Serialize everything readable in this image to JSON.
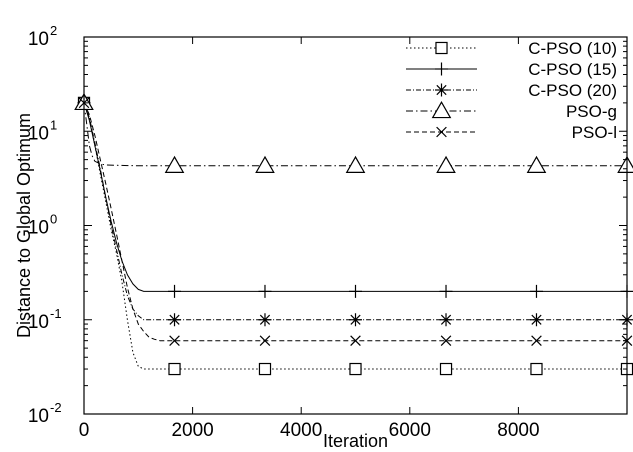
{
  "chart_data": {
    "type": "line",
    "xlabel": "Iteration",
    "ylabel": "Distance to Global Optimum",
    "x_scale": "linear",
    "y_scale": "log",
    "xlim": [
      0,
      10000
    ],
    "ylim": [
      0.01,
      100
    ],
    "x_ticks": [
      0,
      2000,
      4000,
      6000,
      8000
    ],
    "y_ticks": [
      {
        "base": "10",
        "exp": "-2",
        "value": 0.01
      },
      {
        "base": "10",
        "exp": "-1",
        "value": 0.1
      },
      {
        "base": "10",
        "exp": "0",
        "value": 1
      },
      {
        "base": "10",
        "exp": "1",
        "value": 10
      },
      {
        "base": "10",
        "exp": "2",
        "value": 100
      }
    ],
    "grid": false,
    "legend_position": "top-right",
    "marker_x": [
      0,
      1667,
      3333,
      5000,
      6667,
      8333,
      10000
    ],
    "series": [
      {
        "name": "C-PSO (10)",
        "marker": "square",
        "dash": "dotted",
        "final_value": 0.03,
        "x": [
          0,
          100,
          200,
          300,
          400,
          500,
          600,
          700,
          800,
          900,
          1000,
          1100,
          1200,
          1400,
          1600,
          2000,
          3000,
          4000,
          5000,
          6000,
          7000,
          8000,
          9000,
          10000
        ],
        "y": [
          20,
          14,
          7,
          3.5,
          1.8,
          0.9,
          0.5,
          0.25,
          0.1,
          0.045,
          0.032,
          0.03,
          0.03,
          0.03,
          0.03,
          0.03,
          0.03,
          0.03,
          0.03,
          0.03,
          0.03,
          0.03,
          0.03,
          0.03
        ]
      },
      {
        "name": "C-PSO (15)",
        "marker": "plus",
        "dash": "solid",
        "final_value": 0.2,
        "x": [
          0,
          100,
          200,
          300,
          400,
          500,
          600,
          700,
          800,
          900,
          1000,
          1100,
          1200,
          1400,
          1600,
          2000,
          3000,
          4000,
          5000,
          6000,
          7000,
          8000,
          9000,
          10000
        ],
        "y": [
          20,
          13,
          7,
          3.8,
          2.0,
          1.1,
          0.65,
          0.42,
          0.3,
          0.24,
          0.21,
          0.2,
          0.2,
          0.2,
          0.2,
          0.2,
          0.2,
          0.2,
          0.2,
          0.2,
          0.2,
          0.2,
          0.2,
          0.2
        ]
      },
      {
        "name": "C-PSO (20)",
        "marker": "asterisk",
        "dash": "dashed-dotted",
        "final_value": 0.1,
        "x": [
          0,
          100,
          200,
          300,
          400,
          500,
          600,
          700,
          800,
          900,
          1000,
          1100,
          1200,
          1400,
          1600,
          2000,
          3000,
          4000,
          5000,
          6000,
          7000,
          8000,
          9000,
          10000
        ],
        "y": [
          20,
          14,
          7.5,
          4.0,
          2.0,
          1.0,
          0.55,
          0.3,
          0.18,
          0.13,
          0.11,
          0.1,
          0.1,
          0.1,
          0.1,
          0.1,
          0.1,
          0.1,
          0.1,
          0.1,
          0.1,
          0.1,
          0.1,
          0.1
        ]
      },
      {
        "name": "PSO-g",
        "marker": "triangle",
        "dash": "dash-dot",
        "final_value": 4.3,
        "x": [
          0,
          50,
          100,
          150,
          200,
          300,
          400,
          600,
          1000,
          2000,
          4000,
          6000,
          8000,
          10000
        ],
        "y": [
          20,
          12,
          7,
          5.5,
          4.8,
          4.5,
          4.4,
          4.35,
          4.3,
          4.3,
          4.3,
          4.3,
          4.3,
          4.3
        ]
      },
      {
        "name": "PSO-l",
        "marker": "cross",
        "dash": "dashed",
        "final_value": 0.06,
        "x": [
          0,
          100,
          200,
          300,
          400,
          500,
          600,
          700,
          800,
          900,
          1000,
          1100,
          1200,
          1300,
          1400,
          1600,
          2000,
          3000,
          4000,
          5000,
          6000,
          7000,
          8000,
          9000,
          10000
        ],
        "y": [
          20,
          15,
          9,
          5,
          2.8,
          1.5,
          0.8,
          0.42,
          0.22,
          0.13,
          0.09,
          0.075,
          0.065,
          0.062,
          0.06,
          0.06,
          0.06,
          0.06,
          0.06,
          0.06,
          0.06,
          0.06,
          0.06,
          0.06,
          0.06
        ]
      }
    ]
  }
}
